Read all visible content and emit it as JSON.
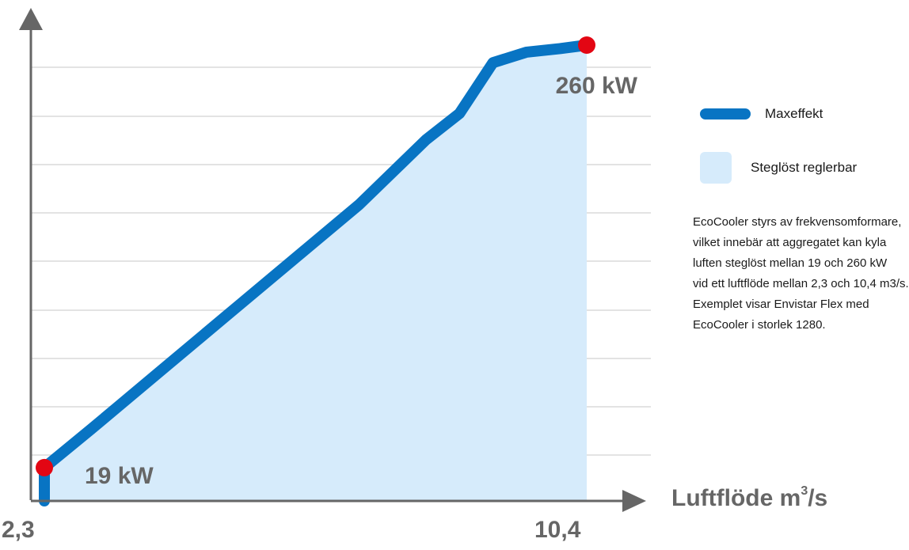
{
  "chart_data": {
    "type": "area",
    "title": "",
    "xlabel": "Luftflöde m",
    "xlabel_superscript": "3",
    "xlabel_suffix": "/s",
    "ylabel": "",
    "x_tick_labels": [
      "2,3",
      "10,4"
    ],
    "xlim": [
      2.3,
      10.4
    ],
    "ylim": [
      0,
      300
    ],
    "grid": true,
    "legend_position": "right",
    "series": [
      {
        "name": "Maxeffekt",
        "type": "line",
        "color": "#0874c3",
        "x": [
          2.3,
          2.3,
          3.0,
          4.0,
          5.0,
          6.0,
          7.0,
          8.0,
          8.5,
          9.0,
          9.5,
          10.0,
          10.4
        ],
        "y": [
          0,
          19,
          41,
          73,
          105,
          137,
          169,
          206,
          221,
          250,
          256,
          258,
          260
        ]
      },
      {
        "name": "Steglöst reglerbar",
        "type": "area",
        "color": "#d6ebfb"
      }
    ],
    "annotations": [
      {
        "text": "19 kW",
        "x": 2.3,
        "y": 19
      },
      {
        "text": "260 kW",
        "x": 10.4,
        "y": 260
      }
    ],
    "marker_color": "#e30613"
  },
  "legend": {
    "line_label": "Maxeffekt",
    "area_label": "Steglöst reglerbar"
  },
  "description": {
    "lines": [
      "EcoCooler styrs av frekvensomformare,",
      "vilket innebär att aggregatet kan kyla",
      "luften steglöst mellan 19 och 260 kW",
      "vid ett luftflöde mellan 2,3 och 10,4 m3/s.",
      "Exemplet visar Envistar Flex med",
      "EcoCooler i storlek 1280."
    ]
  }
}
